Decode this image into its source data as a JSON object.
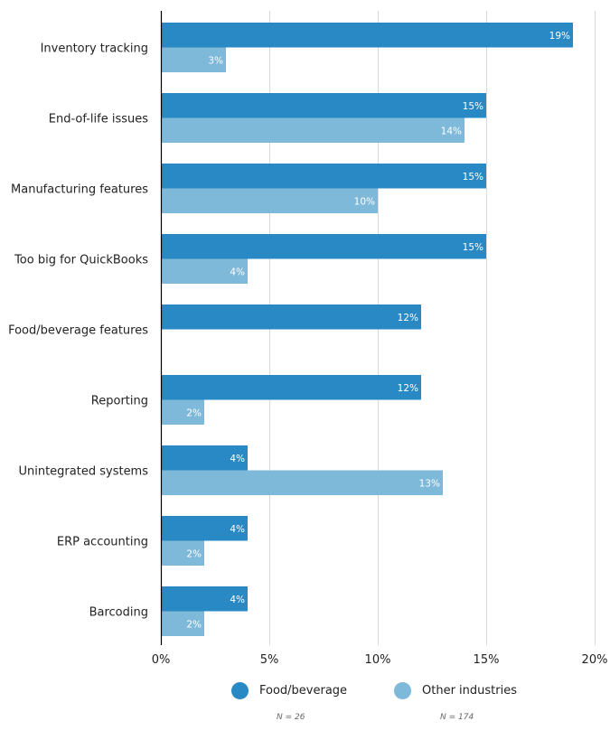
{
  "chart_data": {
    "type": "bar",
    "orientation": "horizontal",
    "title": "",
    "xlabel": "",
    "ylabel": "",
    "xlim": [
      0,
      20
    ],
    "x_ticks": [
      0,
      5,
      10,
      15,
      20
    ],
    "x_tick_labels": [
      "0%",
      "5%",
      "10%",
      "15%",
      "20%"
    ],
    "grid": true,
    "legend_position": "bottom",
    "categories": [
      "Inventory tracking",
      "End-of-life issues",
      "Manufacturing features",
      "Too big for QuickBooks",
      "Food/beverage features",
      "Reporting",
      "Unintegrated systems",
      "ERP accounting",
      "Barcoding"
    ],
    "series": [
      {
        "name": "Food/beverage",
        "color": "#2989c5",
        "n_label": "N = 26",
        "values": [
          19,
          15,
          15,
          15,
          12,
          12,
          4,
          4,
          4
        ],
        "labels": [
          "19%",
          "15%",
          "15%",
          "15%",
          "12%",
          "12%",
          "4%",
          "4%",
          "4%"
        ]
      },
      {
        "name": "Other industries",
        "color": "#7eb9d9",
        "n_label": "N = 174",
        "values": [
          3,
          14,
          10,
          4,
          0,
          2,
          13,
          2,
          2
        ],
        "labels": [
          "3%",
          "14%",
          "10%",
          "4%",
          "",
          "2%",
          "13%",
          "2%",
          "2%"
        ]
      }
    ]
  }
}
